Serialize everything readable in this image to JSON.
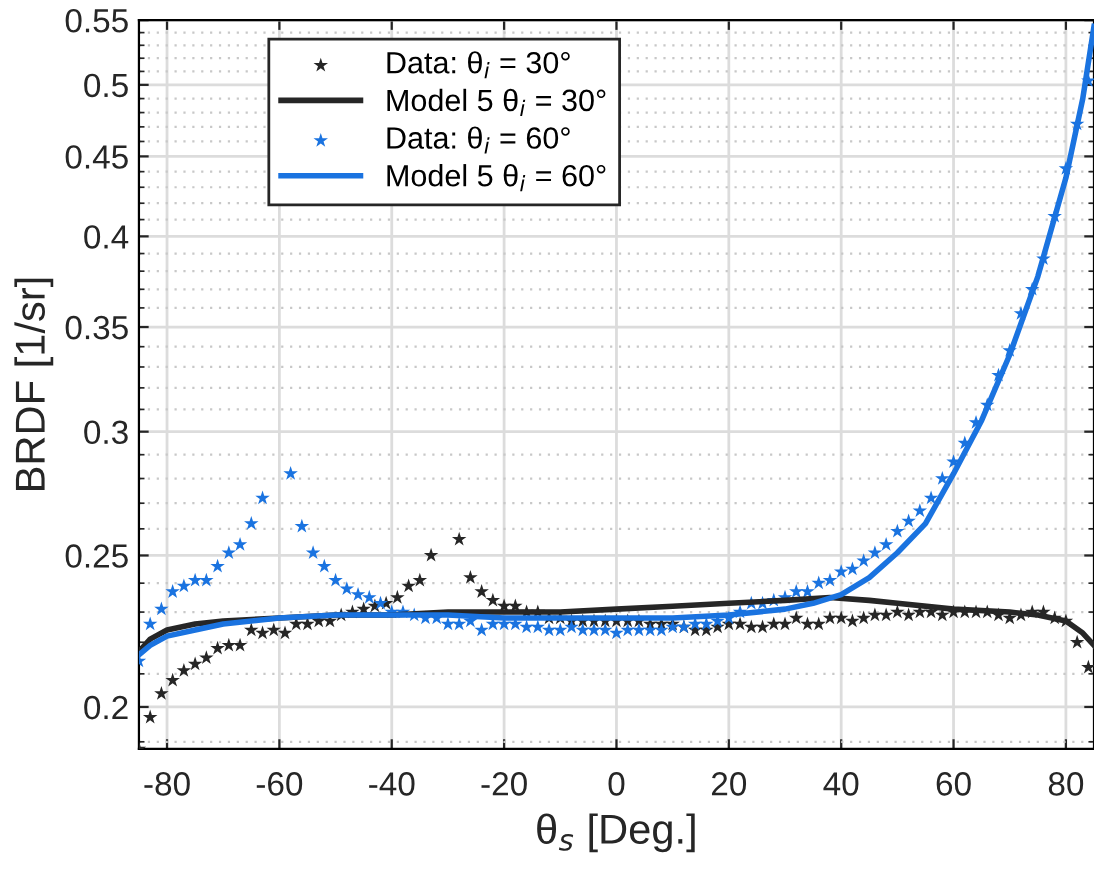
{
  "chart_data": {
    "type": "scatter",
    "xlabel": "θ$_{s}$ [Deg.]",
    "ylabel": "BRDF [1/sr]",
    "xlim": [
      -85,
      85
    ],
    "xticks": [
      -80,
      -60,
      -40,
      -20,
      0,
      20,
      40,
      60,
      80
    ],
    "ylim": [
      0.188,
      0.55
    ],
    "yticks": [
      0.2,
      0.25,
      0.3,
      0.35,
      0.4,
      0.45,
      0.5,
      0.55
    ],
    "log": "y",
    "grid": true,
    "legend": "top left",
    "series": [
      {
        "name": "Data: θ$_{i}$ = 30°",
        "marker": "star",
        "color": "#262626",
        "x": [
          -85,
          -83,
          -81,
          -79,
          -77,
          -75,
          -73,
          -71,
          -69,
          -67,
          -65,
          -63,
          -61,
          -59,
          -57,
          -55,
          -53,
          -51,
          -49,
          -47,
          -45,
          -43,
          -41,
          -39,
          -37,
          -35,
          -33,
          -28,
          -26,
          -24,
          -22,
          -20,
          -18,
          -16,
          -14,
          -12,
          -10,
          -8,
          -6,
          -4,
          -2,
          0,
          2,
          4,
          6,
          8,
          10,
          12,
          14,
          16,
          18,
          20,
          22,
          24,
          26,
          28,
          30,
          32,
          34,
          36,
          38,
          40,
          42,
          44,
          46,
          48,
          50,
          52,
          54,
          56,
          58,
          60,
          62,
          64,
          66,
          68,
          70,
          72,
          74,
          76,
          78,
          80,
          82,
          84
        ],
        "values": [
          0.188,
          0.197,
          0.204,
          0.208,
          0.211,
          0.213,
          0.215,
          0.218,
          0.219,
          0.219,
          0.224,
          0.223,
          0.224,
          0.223,
          0.226,
          0.226,
          0.227,
          0.227,
          0.229,
          0.23,
          0.231,
          0.232,
          0.233,
          0.235,
          0.239,
          0.241,
          0.25,
          0.256,
          0.242,
          0.237,
          0.234,
          0.232,
          0.232,
          0.23,
          0.23,
          0.228,
          0.228,
          0.227,
          0.227,
          0.227,
          0.227,
          0.227,
          0.227,
          0.227,
          0.226,
          0.226,
          0.226,
          0.225,
          0.224,
          0.224,
          0.225,
          0.226,
          0.226,
          0.225,
          0.225,
          0.226,
          0.226,
          0.228,
          0.226,
          0.226,
          0.228,
          0.228,
          0.227,
          0.228,
          0.229,
          0.229,
          0.23,
          0.229,
          0.23,
          0.23,
          0.229,
          0.23,
          0.23,
          0.23,
          0.23,
          0.229,
          0.228,
          0.229,
          0.23,
          0.23,
          0.228,
          0.227,
          0.22,
          0.212
        ]
      },
      {
        "name": "Model 5 θ$_{i}$ = 30°",
        "type": "line",
        "marker": "none",
        "line_style": "solid",
        "color": "#262626",
        "x": [
          -85,
          -83,
          -80,
          -75,
          -70,
          -60,
          -50,
          -40,
          -30,
          -20,
          -10,
          0,
          10,
          20,
          30,
          38,
          45,
          50,
          60,
          70,
          75,
          80,
          83,
          85
        ],
        "values": [
          0.217,
          0.221,
          0.224,
          0.226,
          0.227,
          0.228,
          0.229,
          0.229,
          0.23,
          0.23,
          0.23,
          0.231,
          0.232,
          0.233,
          0.234,
          0.235,
          0.234,
          0.233,
          0.231,
          0.23,
          0.229,
          0.227,
          0.223,
          0.219
        ]
      },
      {
        "name": "Data: θ$_{i}$ = 60°",
        "marker": "star",
        "color": "#1a73e0",
        "x": [
          -85,
          -83,
          -81,
          -79,
          -77,
          -75,
          -73,
          -71,
          -69,
          -67,
          -65,
          -63,
          -58,
          -56,
          -54,
          -52,
          -50,
          -48,
          -46,
          -44,
          -42,
          -40,
          -38,
          -36,
          -34,
          -32,
          -30,
          -28,
          -26,
          -24,
          -22,
          -20,
          -18,
          -16,
          -14,
          -12,
          -10,
          -8,
          -6,
          -4,
          -2,
          0,
          2,
          4,
          6,
          8,
          10,
          12,
          14,
          16,
          18,
          20,
          22,
          24,
          26,
          28,
          30,
          32,
          34,
          36,
          38,
          40,
          42,
          44,
          46,
          48,
          50,
          52,
          54,
          56,
          58,
          60,
          62,
          64,
          66,
          68,
          70,
          72,
          74,
          76,
          78,
          80,
          82,
          84
        ],
        "values": [
          0.214,
          0.226,
          0.231,
          0.237,
          0.239,
          0.241,
          0.241,
          0.246,
          0.251,
          0.254,
          0.262,
          0.272,
          0.282,
          0.261,
          0.251,
          0.246,
          0.241,
          0.238,
          0.236,
          0.235,
          0.233,
          0.23,
          0.23,
          0.229,
          0.228,
          0.228,
          0.226,
          0.226,
          0.227,
          0.224,
          0.226,
          0.226,
          0.226,
          0.225,
          0.225,
          0.224,
          0.224,
          0.225,
          0.224,
          0.224,
          0.224,
          0.223,
          0.224,
          0.224,
          0.224,
          0.224,
          0.225,
          0.225,
          0.226,
          0.226,
          0.227,
          0.228,
          0.23,
          0.233,
          0.233,
          0.234,
          0.235,
          0.237,
          0.237,
          0.24,
          0.241,
          0.244,
          0.245,
          0.248,
          0.251,
          0.254,
          0.259,
          0.263,
          0.267,
          0.272,
          0.28,
          0.287,
          0.295,
          0.304,
          0.312,
          0.326,
          0.338,
          0.357,
          0.37,
          0.387,
          0.412,
          0.442,
          0.472,
          0.503
        ]
      },
      {
        "name": "Model 5 θ$_{i}$ = 60°",
        "type": "line",
        "marker": "none",
        "line_style": "solid",
        "color": "#1a73e0",
        "x": [
          -85,
          -83,
          -80,
          -75,
          -70,
          -60,
          -50,
          -40,
          -30,
          -20,
          -10,
          0,
          10,
          20,
          30,
          35,
          40,
          45,
          50,
          55,
          60,
          65,
          70,
          75,
          80,
          83,
          85
        ],
        "values": [
          0.216,
          0.219,
          0.222,
          0.224,
          0.226,
          0.228,
          0.229,
          0.229,
          0.229,
          0.228,
          0.228,
          0.228,
          0.228,
          0.229,
          0.231,
          0.233,
          0.236,
          0.242,
          0.251,
          0.262,
          0.282,
          0.305,
          0.336,
          0.377,
          0.436,
          0.49,
          0.545
        ]
      }
    ]
  }
}
